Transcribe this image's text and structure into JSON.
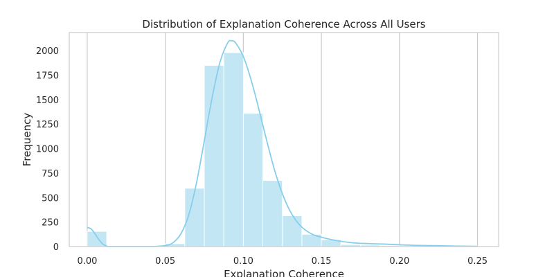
{
  "chart_data": {
    "type": "bar",
    "title": "Distribution of Explanation Coherence Across All Users",
    "xlabel": "Explanation Coherence",
    "ylabel": "Frequency",
    "xlim": [
      -0.0115,
      0.2635
    ],
    "ylim": [
      0,
      2185
    ],
    "x_ticks": [
      0.0,
      0.05,
      0.1,
      0.15,
      0.2,
      0.25
    ],
    "x_tick_labels": [
      "0.00",
      "0.05",
      "0.10",
      "0.15",
      "0.20",
      "0.25"
    ],
    "y_ticks": [
      0,
      250,
      500,
      750,
      1000,
      1250,
      1500,
      1750,
      2000
    ],
    "y_tick_labels": [
      "0",
      "250",
      "500",
      "750",
      "1000",
      "1250",
      "1500",
      "1750",
      "2000"
    ],
    "grid": "vertical",
    "bar_color": "#87ceeb",
    "bar_opacity": 0.5,
    "kde_color": "#87ceeb",
    "bins": [
      {
        "x0": 0.0,
        "x1": 0.0125,
        "count": 155
      },
      {
        "x0": 0.0125,
        "x1": 0.025,
        "count": 0
      },
      {
        "x0": 0.025,
        "x1": 0.0375,
        "count": 0
      },
      {
        "x0": 0.0375,
        "x1": 0.05,
        "count": 0
      },
      {
        "x0": 0.05,
        "x1": 0.0625,
        "count": 30
      },
      {
        "x0": 0.0625,
        "x1": 0.075,
        "count": 595
      },
      {
        "x0": 0.075,
        "x1": 0.0875,
        "count": 1850
      },
      {
        "x0": 0.0875,
        "x1": 0.1,
        "count": 1980
      },
      {
        "x0": 0.1,
        "x1": 0.1125,
        "count": 1360
      },
      {
        "x0": 0.1125,
        "x1": 0.125,
        "count": 675
      },
      {
        "x0": 0.125,
        "x1": 0.1375,
        "count": 315
      },
      {
        "x0": 0.1375,
        "x1": 0.15,
        "count": 125
      },
      {
        "x0": 0.15,
        "x1": 0.1625,
        "count": 70
      },
      {
        "x0": 0.1625,
        "x1": 0.175,
        "count": 20
      },
      {
        "x0": 0.175,
        "x1": 0.1875,
        "count": 15
      },
      {
        "x0": 0.1875,
        "x1": 0.2,
        "count": 10
      },
      {
        "x0": 0.2,
        "x1": 0.2125,
        "count": 5
      },
      {
        "x0": 0.2125,
        "x1": 0.225,
        "count": 5
      },
      {
        "x0": 0.225,
        "x1": 0.2375,
        "count": 3
      },
      {
        "x0": 0.2375,
        "x1": 0.25,
        "count": 2
      },
      {
        "x0": 0.25,
        "x1": 0.2525,
        "count": 2
      }
    ],
    "kde": [
      {
        "x": 0.0,
        "y": 195
      },
      {
        "x": 0.0025,
        "y": 180
      },
      {
        "x": 0.005,
        "y": 130
      },
      {
        "x": 0.0075,
        "y": 70
      },
      {
        "x": 0.01,
        "y": 25
      },
      {
        "x": 0.0125,
        "y": 5
      },
      {
        "x": 0.015,
        "y": 0
      },
      {
        "x": 0.04,
        "y": 0
      },
      {
        "x": 0.05,
        "y": 10
      },
      {
        "x": 0.055,
        "y": 40
      },
      {
        "x": 0.06,
        "y": 130
      },
      {
        "x": 0.065,
        "y": 320
      },
      {
        "x": 0.07,
        "y": 650
      },
      {
        "x": 0.075,
        "y": 1080
      },
      {
        "x": 0.08,
        "y": 1520
      },
      {
        "x": 0.085,
        "y": 1880
      },
      {
        "x": 0.09,
        "y": 2080
      },
      {
        "x": 0.0925,
        "y": 2100
      },
      {
        "x": 0.095,
        "y": 2080
      },
      {
        "x": 0.1,
        "y": 1940
      },
      {
        "x": 0.105,
        "y": 1700
      },
      {
        "x": 0.11,
        "y": 1400
      },
      {
        "x": 0.115,
        "y": 1080
      },
      {
        "x": 0.12,
        "y": 780
      },
      {
        "x": 0.125,
        "y": 540
      },
      {
        "x": 0.13,
        "y": 360
      },
      {
        "x": 0.135,
        "y": 240
      },
      {
        "x": 0.14,
        "y": 165
      },
      {
        "x": 0.145,
        "y": 120
      },
      {
        "x": 0.15,
        "y": 95
      },
      {
        "x": 0.16,
        "y": 60
      },
      {
        "x": 0.17,
        "y": 38
      },
      {
        "x": 0.18,
        "y": 30
      },
      {
        "x": 0.19,
        "y": 25
      },
      {
        "x": 0.2,
        "y": 18
      },
      {
        "x": 0.21,
        "y": 12
      },
      {
        "x": 0.22,
        "y": 10
      },
      {
        "x": 0.23,
        "y": 7
      },
      {
        "x": 0.24,
        "y": 4
      },
      {
        "x": 0.25,
        "y": 2
      }
    ]
  }
}
